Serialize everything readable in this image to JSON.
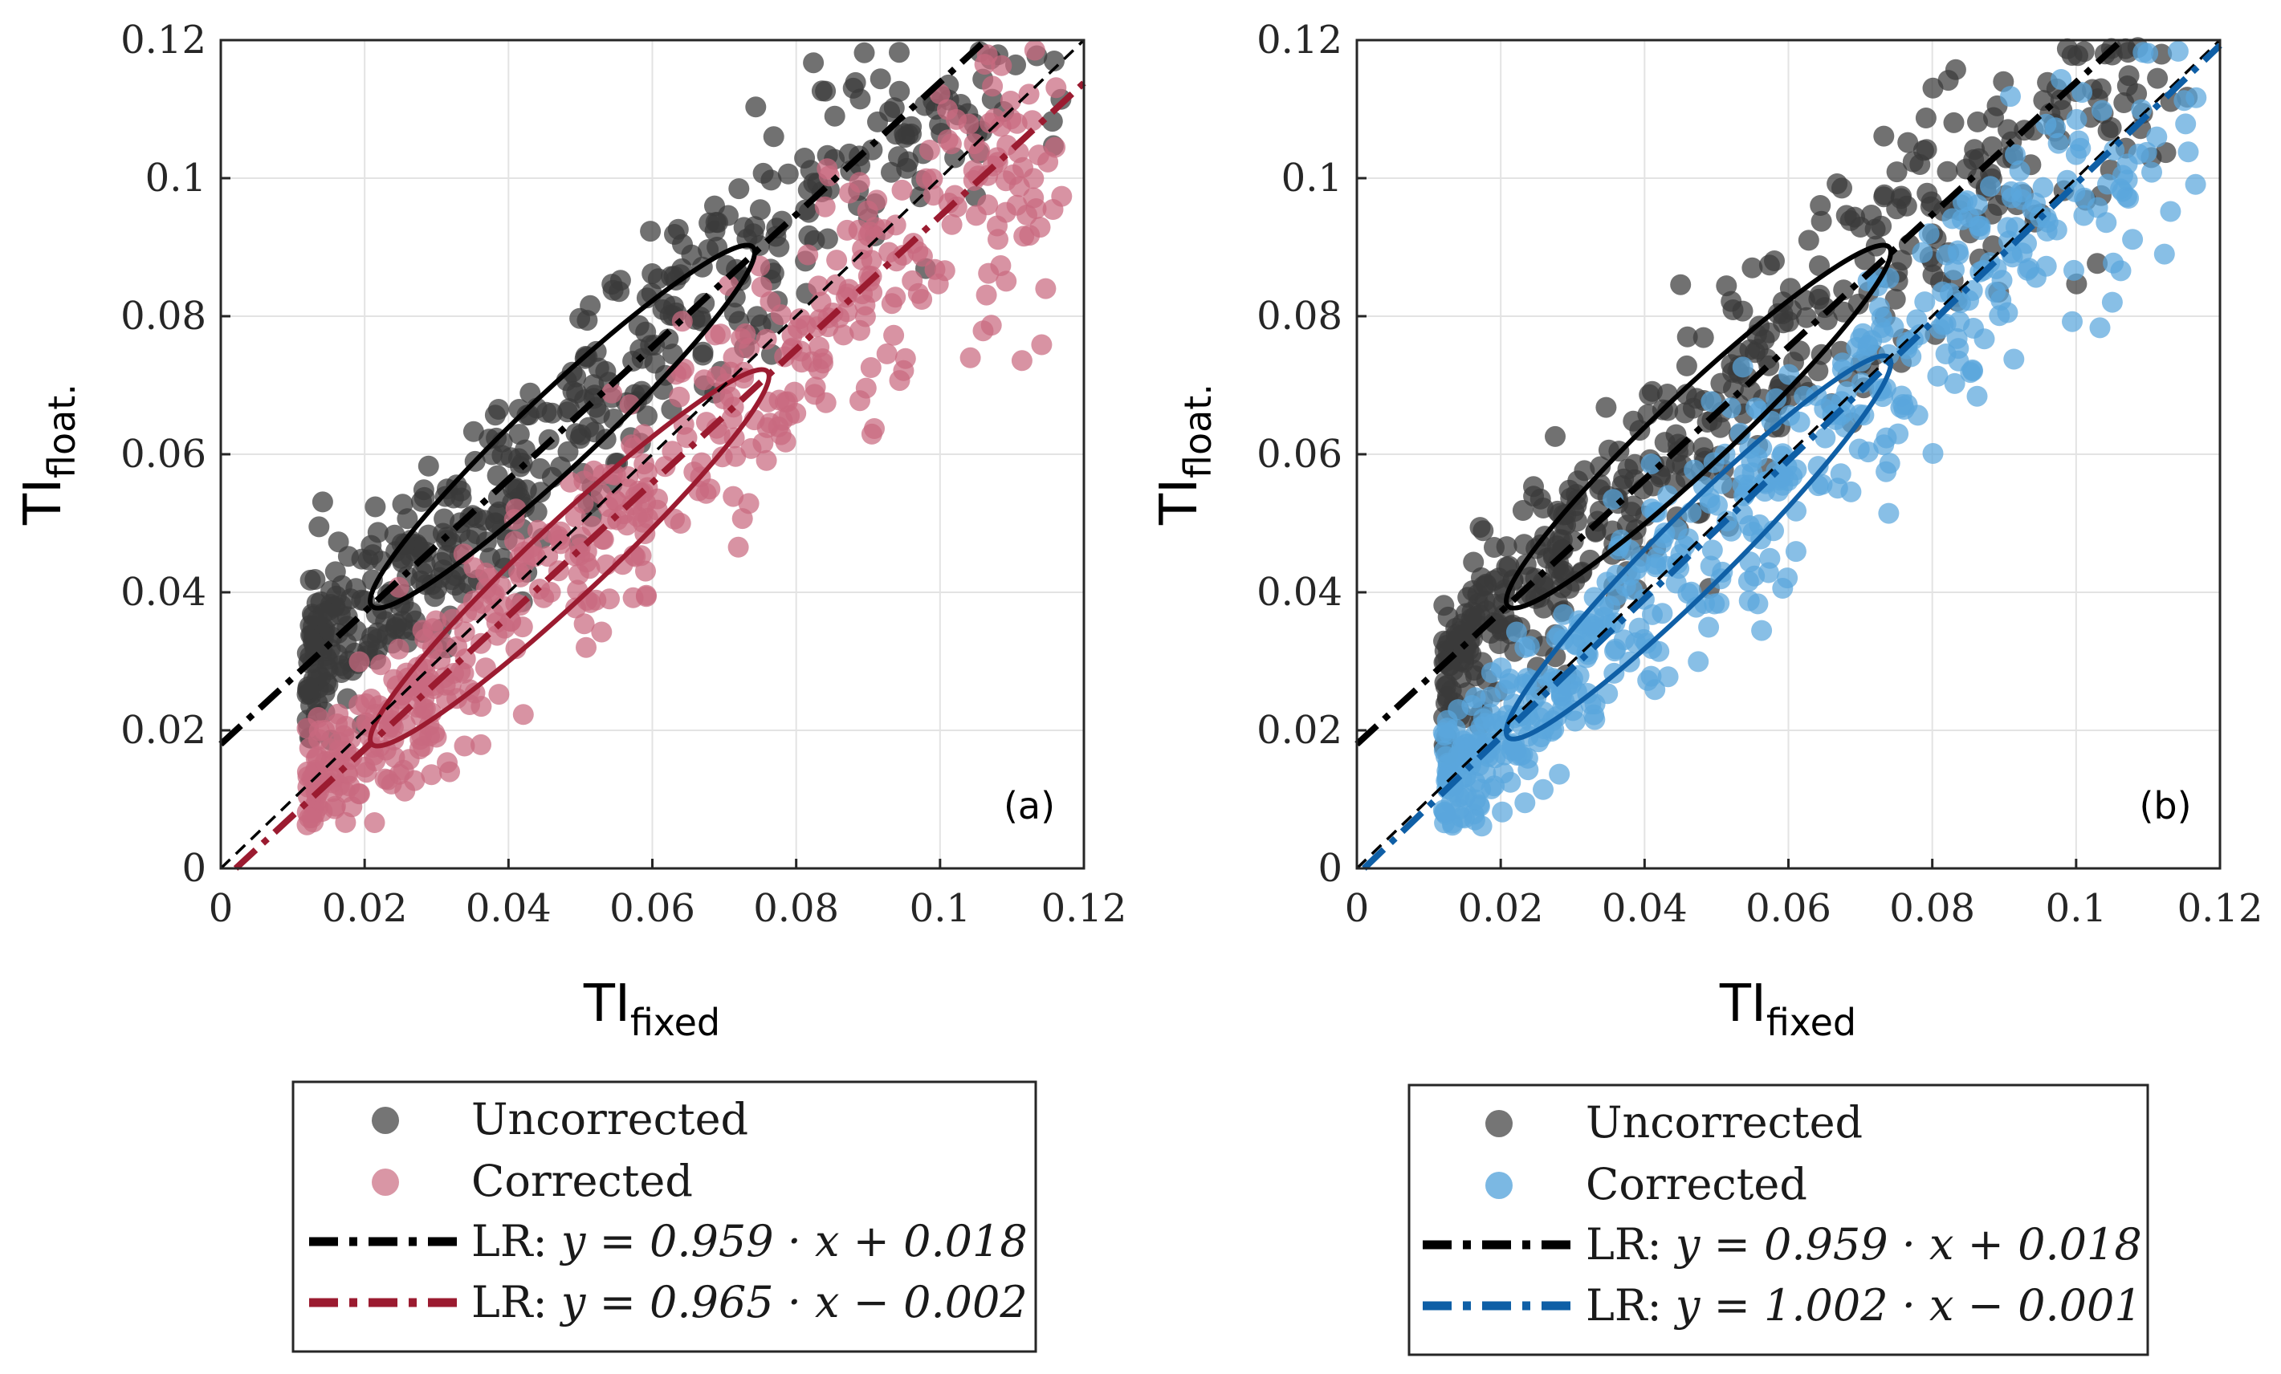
{
  "colors": {
    "uncorrected": "#3a3a3a",
    "corrected_a": "#c96a7f",
    "corrected_b": "#5aa6dc",
    "lr_uncorrected": "#000000",
    "lr_a": "#9b1b30",
    "lr_b": "#0f5fa6",
    "grid": "#e3e3e3"
  },
  "chart_data": [
    {
      "type": "scatter",
      "panel_label": "(a)",
      "xlabel": "TI",
      "xlabel_sub": "fixed",
      "ylabel": "TI",
      "ylabel_sub": "float.",
      "xlim": [
        0,
        0.12
      ],
      "ylim": [
        0,
        0.12
      ],
      "x_ticks": [
        "0",
        "0.02",
        "0.04",
        "0.06",
        "0.08",
        "0.1",
        "0.12"
      ],
      "y_ticks": [
        "0",
        "0.02",
        "0.04",
        "0.06",
        "0.08",
        "0.1",
        "0.12"
      ],
      "grid": true,
      "series": [
        {
          "name": "Uncorrected",
          "kind": "points",
          "trend": {
            "slope": 0.959,
            "intercept": 0.018
          }
        },
        {
          "name": "Corrected",
          "kind": "points",
          "trend": {
            "slope": 0.965,
            "intercept": -0.002
          }
        }
      ],
      "fits": [
        {
          "label": "LR: y = 0.959 · x + 0.018",
          "slope": 0.959,
          "intercept": 0.018
        },
        {
          "label": "LR: y = 0.965 · x − 0.002",
          "slope": 0.965,
          "intercept": -0.002
        }
      ],
      "reference_line": {
        "slope": 1,
        "intercept": 0
      },
      "ellipses": [
        {
          "series": "Uncorrected",
          "from": [
            0.021,
            0.038
          ],
          "to": [
            0.074,
            0.09
          ]
        },
        {
          "series": "Corrected",
          "from": [
            0.021,
            0.018
          ],
          "to": [
            0.076,
            0.072
          ]
        }
      ],
      "legend": {
        "placement": "below",
        "items": [
          {
            "label": "Uncorrected",
            "kind": "marker"
          },
          {
            "label": "Corrected",
            "kind": "marker"
          },
          {
            "prefix": "LR: ",
            "math": "y = 0.959 · x + 0.018",
            "kind": "line"
          },
          {
            "prefix": "LR: ",
            "math": "y = 0.965 · x − 0.002",
            "kind": "line"
          }
        ]
      }
    },
    {
      "type": "scatter",
      "panel_label": "(b)",
      "xlabel": "TI",
      "xlabel_sub": "fixed",
      "ylabel": "TI",
      "ylabel_sub": "float.",
      "xlim": [
        0,
        0.12
      ],
      "ylim": [
        0,
        0.12
      ],
      "x_ticks": [
        "0",
        "0.02",
        "0.04",
        "0.06",
        "0.08",
        "0.1",
        "0.12"
      ],
      "y_ticks": [
        "0",
        "0.02",
        "0.04",
        "0.06",
        "0.08",
        "0.1",
        "0.12"
      ],
      "grid": true,
      "series": [
        {
          "name": "Uncorrected",
          "kind": "points",
          "trend": {
            "slope": 0.959,
            "intercept": 0.018
          }
        },
        {
          "name": "Corrected",
          "kind": "points",
          "trend": {
            "slope": 1.002,
            "intercept": -0.001
          }
        }
      ],
      "fits": [
        {
          "label": "LR: y = 0.959 · x + 0.018",
          "slope": 0.959,
          "intercept": 0.018
        },
        {
          "label": "LR: y = 1.002 · x − 0.001",
          "slope": 1.002,
          "intercept": -0.001
        }
      ],
      "reference_line": {
        "slope": 1,
        "intercept": 0
      },
      "ellipses": [
        {
          "series": "Uncorrected",
          "from": [
            0.021,
            0.038
          ],
          "to": [
            0.074,
            0.09
          ]
        },
        {
          "series": "Corrected",
          "from": [
            0.021,
            0.019
          ],
          "to": [
            0.074,
            0.074
          ]
        }
      ],
      "legend": {
        "placement": "below",
        "items": [
          {
            "label": "Uncorrected",
            "kind": "marker"
          },
          {
            "label": "Corrected",
            "kind": "marker"
          },
          {
            "prefix": "LR: ",
            "math": "y = 0.959 · x + 0.018",
            "kind": "line"
          },
          {
            "prefix": "LR: ",
            "math": "y = 1.002 · x − 0.001",
            "kind": "line"
          }
        ]
      }
    }
  ]
}
